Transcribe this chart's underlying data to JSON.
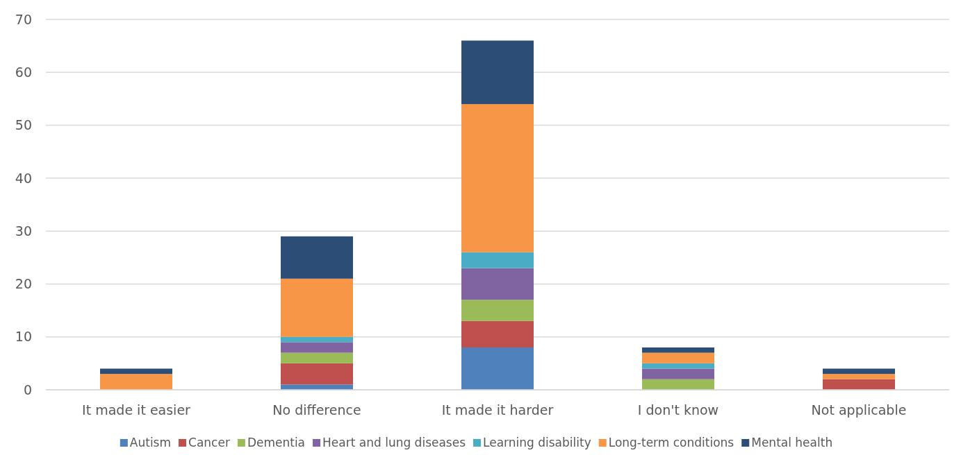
{
  "chart_data": {
    "type": "bar",
    "stacked": true,
    "categories": [
      "It made it easier",
      "No difference",
      "It made it harder",
      "I don't know",
      "Not applicable"
    ],
    "series": [
      {
        "name": "Autism",
        "color": "#4f81bd",
        "values": [
          0,
          1,
          8,
          0,
          0
        ]
      },
      {
        "name": "Cancer",
        "color": "#c0504d",
        "values": [
          0,
          4,
          5,
          0,
          2
        ]
      },
      {
        "name": "Dementia",
        "color": "#9bbb59",
        "values": [
          0,
          2,
          4,
          2,
          0
        ]
      },
      {
        "name": "Heart and lung diseases",
        "color": "#8064a2",
        "values": [
          0,
          2,
          6,
          2,
          0
        ]
      },
      {
        "name": "Learning disability",
        "color": "#4bacc6",
        "values": [
          0,
          1,
          3,
          1,
          0
        ]
      },
      {
        "name": "Long-term conditions",
        "color": "#f79646",
        "values": [
          3,
          11,
          28,
          2,
          1
        ]
      },
      {
        "name": "Mental health",
        "color": "#2c4d75",
        "values": [
          1,
          8,
          12,
          1,
          1
        ]
      }
    ],
    "ylim": [
      0,
      70
    ],
    "yticks": [
      0,
      10,
      20,
      30,
      40,
      50,
      60,
      70
    ],
    "grid": "y",
    "legend": "bottom"
  }
}
